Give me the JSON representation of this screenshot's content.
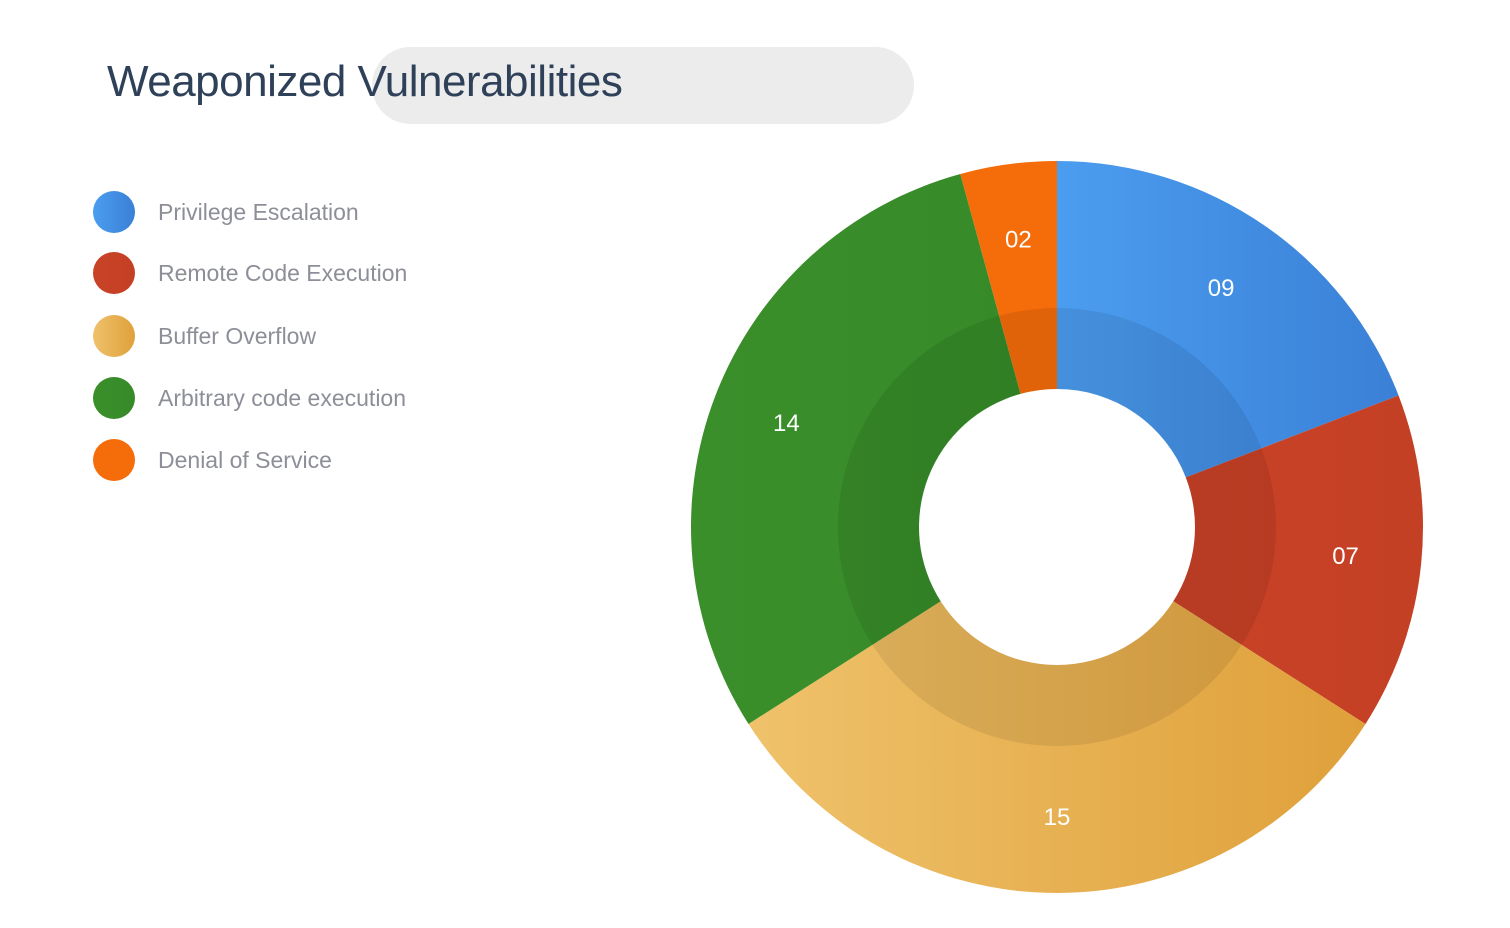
{
  "chart_data": {
    "type": "pie",
    "title": "Weaponized Vulnerabilities",
    "legend_position": "left",
    "slices": [
      {
        "name": "Privilege Escalation",
        "value": 9,
        "label": "09",
        "color": "#4b9df0",
        "color_end": "#3a80d6"
      },
      {
        "name": "Remote Code Execution",
        "value": 7,
        "label": "07",
        "color": "#c84226",
        "color_end": "#c44024"
      },
      {
        "name": "Buffer Overflow",
        "value": 15,
        "label": "15",
        "color": "#efc26b",
        "color_end": "#dfa03a"
      },
      {
        "name": "Arbitrary code execution",
        "value": 14,
        "label": "14",
        "color": "#3b8f2b",
        "color_end": "#368a28"
      },
      {
        "name": "Denial of Service",
        "value": 2,
        "label": "02",
        "color": "#f56c0a",
        "color_end": "#f56c0a"
      }
    ]
  }
}
